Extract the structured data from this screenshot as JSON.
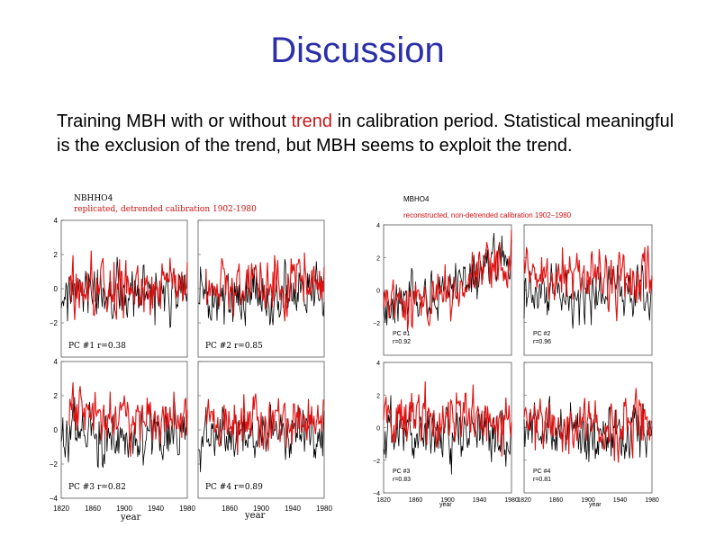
{
  "slide": {
    "title": "Discussion",
    "body_part1": "Training MBH with or without ",
    "body_highlight": "trend",
    "body_part2": " in calibration period. Statistical meaningful is the exclusion of the trend, but MBH seems to exploit the trend.",
    "accent_color": "#c81818",
    "title_color": "#2b2fa8"
  },
  "chart_data": [
    {
      "type": "line",
      "header_line1": "NBHHO4",
      "header_line2": "replicated,  detrended calibration 1902-1980",
      "xlabel": "year",
      "xlim": [
        1820,
        1980
      ],
      "ylim": [
        -4,
        4
      ],
      "x_ticks": [
        "1820",
        "1860",
        "1900",
        "1940",
        "1980"
      ],
      "x_ticks_right": [
        "1860",
        "1900",
        "1940",
        "1980"
      ],
      "y_ticks": [
        "4",
        "2",
        "0",
        "−2"
      ],
      "y_ticks_lower": [
        "4",
        "2",
        "0",
        "−2",
        "−4"
      ],
      "panels": [
        {
          "pc": "PC #1",
          "r": "r=0.38",
          "seed": 11,
          "trend": 0.0,
          "bias": 0.2
        },
        {
          "pc": "PC #2",
          "r": "r=0.85",
          "seed": 23,
          "trend": 0.0,
          "bias": 0.3
        },
        {
          "pc": "PC #3",
          "r": "r=0.82",
          "seed": 37,
          "trend": 0.0,
          "bias": 0.6
        },
        {
          "pc": "PC #4",
          "r": "r=0.89",
          "seed": 41,
          "trend": 0.0,
          "bias": 0.5
        }
      ],
      "series": [
        {
          "color": "#000000"
        },
        {
          "color": "#e01010"
        }
      ]
    },
    {
      "type": "line",
      "header_line1": "MBHO4",
      "header_line2": "reconstructed, non-detrended calibration 1902−1980",
      "xlabel": "year",
      "xlim": [
        1820,
        1980
      ],
      "ylim": [
        -4,
        4
      ],
      "x_ticks": [
        "1820",
        "1860",
        "1900",
        "1940",
        "1980"
      ],
      "x_ticks_right": [
        "1820",
        "1860",
        "1900",
        "1940",
        "1980"
      ],
      "y_ticks": [
        "4",
        "2",
        "0",
        "−2"
      ],
      "y_ticks_lower": [
        "4",
        "2",
        "0",
        "−2",
        "−4"
      ],
      "panels": [
        {
          "pc": "PC #1",
          "r": "r=0.92",
          "seed": 53,
          "trend": 1.6,
          "bias": -0.6
        },
        {
          "pc": "PC #2",
          "r": "r=0.96",
          "seed": 61,
          "trend": 0.0,
          "bias": 0.7
        },
        {
          "pc": "PC #3",
          "r": "r=0.83",
          "seed": 71,
          "trend": 0.0,
          "bias": 0.4
        },
        {
          "pc": "PC #4",
          "r": "r=0.81",
          "seed": 83,
          "trend": 0.0,
          "bias": 0.3
        }
      ],
      "series": [
        {
          "color": "#000000"
        },
        {
          "color": "#e01010"
        }
      ]
    }
  ]
}
